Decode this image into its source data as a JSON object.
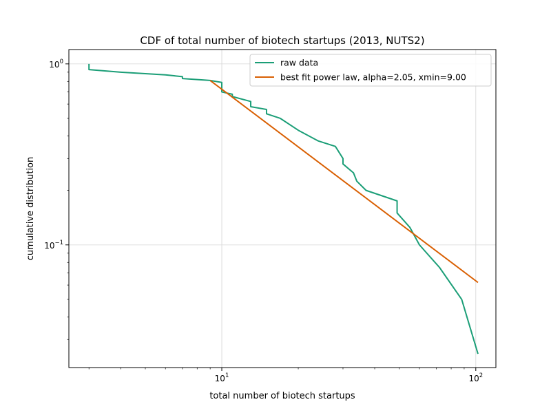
{
  "chart_data": {
    "type": "line",
    "title": "CDF of total number of biotech startups (2013, NUTS2)",
    "xlabel": "total number of biotech startups",
    "ylabel": "cumulative distribution",
    "xscale": "log",
    "yscale": "log",
    "xlim": [
      2.5,
      120
    ],
    "ylim": [
      0.021,
      1.2
    ],
    "grid": true,
    "legend_position": "top-right",
    "x_ticks": [
      {
        "value": 10,
        "base": "10",
        "exp": "1"
      },
      {
        "value": 100,
        "base": "10",
        "exp": "2"
      }
    ],
    "y_ticks": [
      {
        "value": 0.1,
        "base": "10",
        "exp": "−1"
      },
      {
        "value": 1,
        "base": "10",
        "exp": "0"
      }
    ],
    "series": [
      {
        "name": "raw data",
        "color": "#1b9e77",
        "points": [
          [
            3,
            1.0
          ],
          [
            3,
            0.93
          ],
          [
            4,
            0.9
          ],
          [
            6,
            0.87
          ],
          [
            7,
            0.85
          ],
          [
            7,
            0.83
          ],
          [
            9,
            0.81
          ],
          [
            10,
            0.79
          ],
          [
            10,
            0.7
          ],
          [
            11,
            0.68
          ],
          [
            11,
            0.66
          ],
          [
            13,
            0.62
          ],
          [
            13,
            0.58
          ],
          [
            15,
            0.56
          ],
          [
            15,
            0.53
          ],
          [
            17,
            0.5
          ],
          [
            20,
            0.43
          ],
          [
            24,
            0.375
          ],
          [
            28,
            0.35
          ],
          [
            30,
            0.3
          ],
          [
            30,
            0.28
          ],
          [
            33,
            0.25
          ],
          [
            34,
            0.225
          ],
          [
            37,
            0.2
          ],
          [
            49,
            0.175
          ],
          [
            49,
            0.15
          ],
          [
            55,
            0.125
          ],
          [
            60,
            0.1
          ],
          [
            72,
            0.075
          ],
          [
            88,
            0.05
          ],
          [
            102,
            0.025
          ]
        ]
      },
      {
        "name": "best fit power law, alpha=2.05, xmin=9.00",
        "color": "#d95f02",
        "points": [
          [
            9,
            0.81
          ],
          [
            102,
            0.062
          ]
        ]
      }
    ]
  }
}
